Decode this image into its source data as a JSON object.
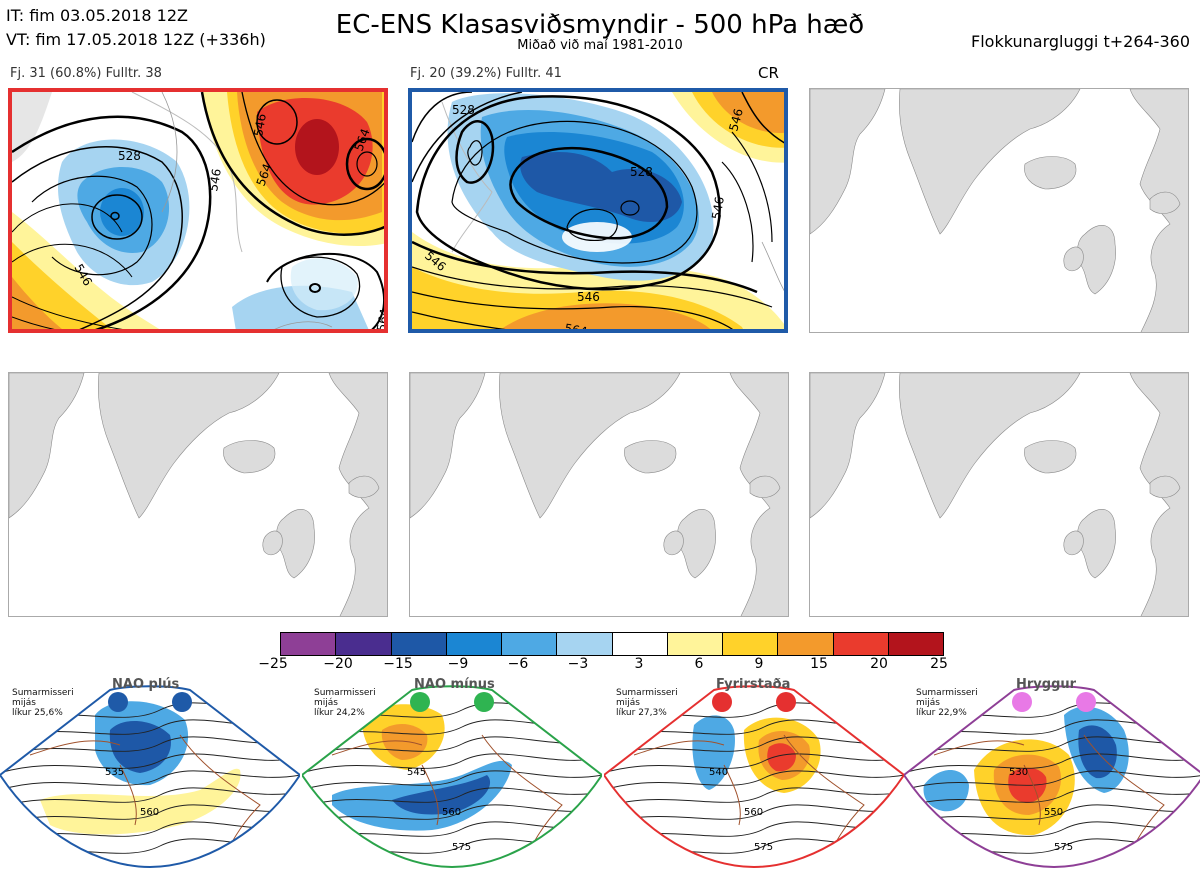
{
  "header": {
    "it": "IT: fim 03.05.2018 12Z",
    "vt": "VT: fim 17.05.2018 12Z  (+336h)",
    "title": "EC-ENS Klasasviðsmyndir - 500 hPa hæð",
    "subtitle": "Miðað við maí 1981-2010",
    "window": "Flokkunargluggi t+264-360"
  },
  "panels": [
    {
      "label": "Fj. 31 (60.8%)   Fulltr. 38",
      "border_color": "#e53030"
    },
    {
      "label": "Fj. 20 (39.2%)   Fulltr. 41",
      "border_color": "#1f5aa8",
      "tag": "CR"
    }
  ],
  "contour_labels": {
    "panel1": [
      "528",
      "546",
      "546",
      "564",
      "564",
      "546",
      "564"
    ],
    "panel2": [
      "528",
      "528",
      "546",
      "546",
      "546",
      "564",
      "546"
    ]
  },
  "colorbar": {
    "colors": [
      "#8e3f96",
      "#4a2d8f",
      "#1e58a7",
      "#1b86d3",
      "#4ea9e4",
      "#a6d4f1",
      "#ffffff",
      "#fff49a",
      "#ffd22a",
      "#f39a2c",
      "#ea3b2d",
      "#b3141c"
    ],
    "ticks": [
      "−25",
      "−20",
      "−15",
      "−9",
      "−6",
      "−3",
      "3",
      "6",
      "9",
      "15",
      "20",
      "25"
    ]
  },
  "regimes": [
    {
      "name": "NAO plús",
      "note": [
        "Sumarmisseri",
        "mijás",
        "líkur 25,6%"
      ],
      "color": "#1f5aa8",
      "dot_color": "#1f5aa8",
      "labels": [
        "535",
        "560"
      ]
    },
    {
      "name": "NAO mínus",
      "note": [
        "Sumarmisseri",
        "mijás",
        "líkur 24,2%"
      ],
      "color": "#2aa34a",
      "dot_color": "#2fb451",
      "labels": [
        "545",
        "560",
        "575"
      ]
    },
    {
      "name": "Fyrirstaða",
      "note": [
        "Sumarmisseri",
        "mijás",
        "líkur 27,3%"
      ],
      "color": "#e53030",
      "dot_color": "#e53030",
      "labels": [
        "540",
        "560",
        "575"
      ]
    },
    {
      "name": "Hryggur",
      "note": [
        "Sumarmisseri",
        "mijás",
        "líkur 22,9%"
      ],
      "color": "#8e3f96",
      "dot_color": "#e879e6",
      "labels": [
        "530",
        "550",
        "575"
      ]
    }
  ]
}
